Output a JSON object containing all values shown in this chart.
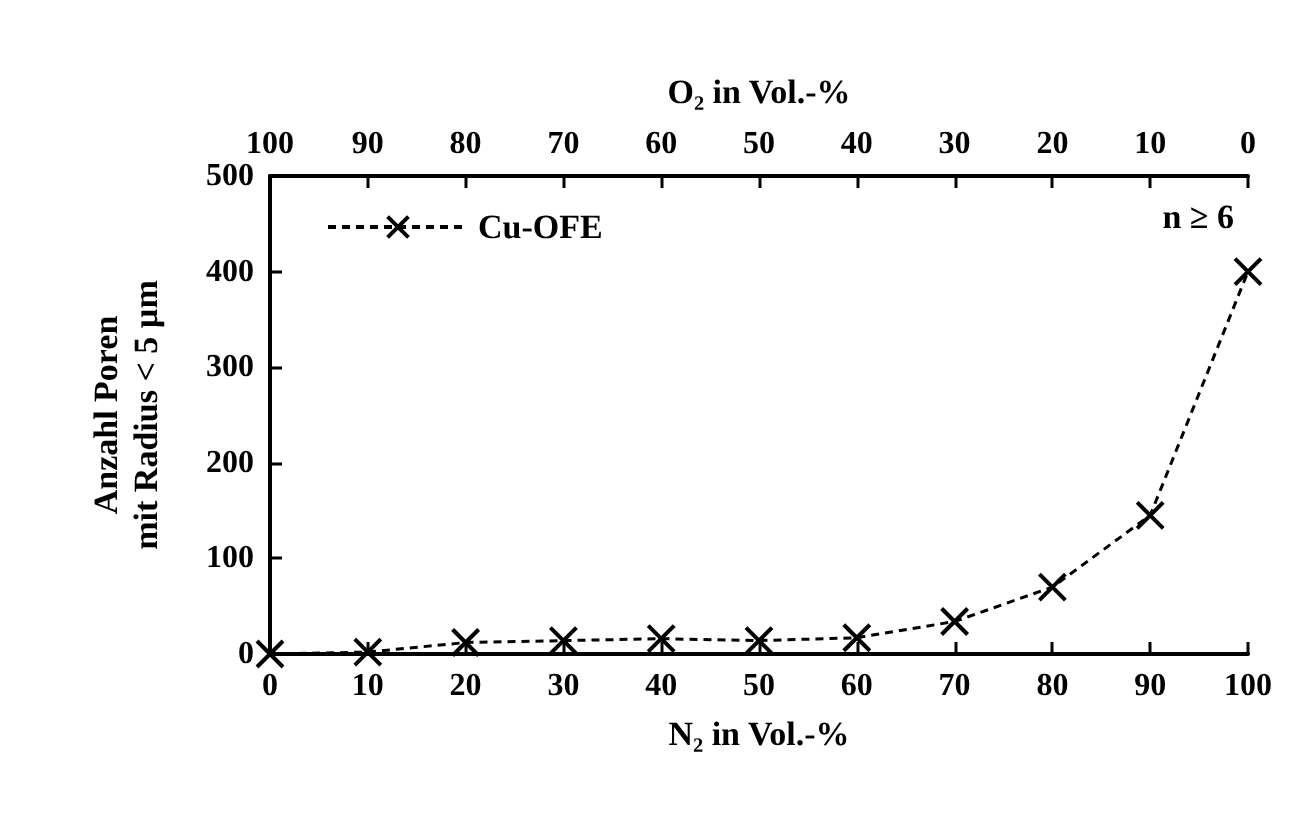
{
  "chart_data": {
    "type": "line",
    "xlabel": "N₂ in Vol.-%",
    "x2label": "O₂ in Vol.-%",
    "ylabel": "Anzahl Poren\nmit Radius < 5 µm",
    "x": [
      0,
      10,
      20,
      30,
      40,
      50,
      60,
      70,
      80,
      90,
      100
    ],
    "series": [
      {
        "name": "Cu-OFE",
        "color": "#000000",
        "values": [
          0,
          2,
          12,
          14,
          16,
          14,
          17,
          34,
          70,
          145,
          400
        ]
      }
    ],
    "xlim": [
      0,
      100
    ],
    "xticks": [
      0,
      10,
      20,
      30,
      40,
      50,
      60,
      70,
      80,
      90,
      100
    ],
    "x2lim": [
      100,
      0
    ],
    "x2ticks": [
      100,
      90,
      80,
      70,
      60,
      50,
      40,
      30,
      20,
      10,
      0
    ],
    "ylim": [
      0,
      500
    ],
    "yticks": [
      0,
      100,
      200,
      300,
      400,
      500
    ],
    "annotations": [
      "n ≥ 6"
    ],
    "grid": false,
    "legend": "top left",
    "marker": "cross",
    "line_style": "dashed"
  }
}
